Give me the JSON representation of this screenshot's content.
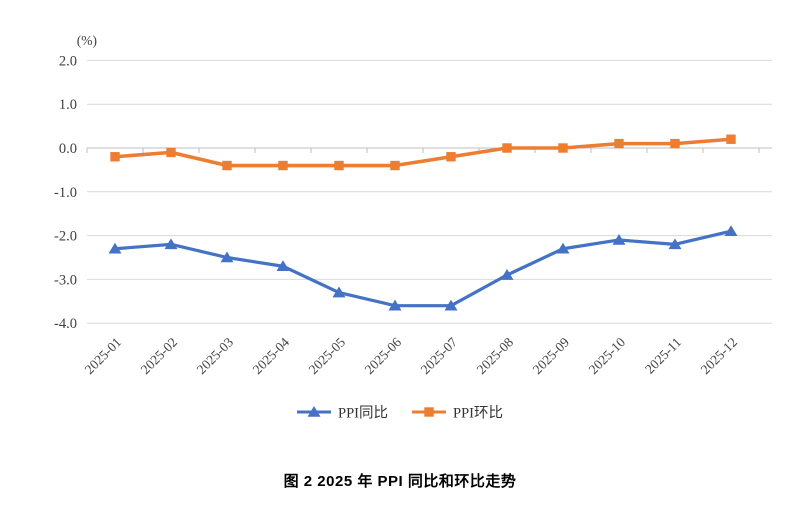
{
  "chart_data": {
    "type": "line",
    "unit_label": "(%)",
    "categories": [
      "2025-01",
      "2025-02",
      "2025-03",
      "2025-04",
      "2025-05",
      "2025-06",
      "2025-07",
      "2025-08",
      "2025-09",
      "2025-10",
      "2025-11",
      "2025-12"
    ],
    "series": [
      {
        "name": "PPI同比",
        "marker": "triangle",
        "color": "#4472C4",
        "values": [
          -2.3,
          -2.2,
          -2.5,
          -2.7,
          -3.3,
          -3.6,
          -3.6,
          -2.9,
          -2.3,
          -2.1,
          -2.2,
          -1.9
        ]
      },
      {
        "name": "PPI环比",
        "marker": "square",
        "color": "#ED7D31",
        "values": [
          -0.2,
          -0.1,
          -0.4,
          -0.4,
          -0.4,
          -0.4,
          -0.2,
          0.0,
          0.0,
          0.1,
          0.1,
          0.2
        ]
      }
    ],
    "y_ticks": [
      "2.0",
      "1.0",
      "0.0",
      "-1.0",
      "-2.0",
      "-3.0",
      "-4.0"
    ],
    "ylim": [
      -4.0,
      2.0
    ],
    "grid": true,
    "legend_position": "bottom",
    "caption": "图 2  2025 年 PPI 同比和环比走势",
    "colors": {
      "gridline": "#D9D9D9",
      "axis_line": "#BFBFBF",
      "axis_text": "#404040",
      "legend_text": "#333333"
    }
  }
}
